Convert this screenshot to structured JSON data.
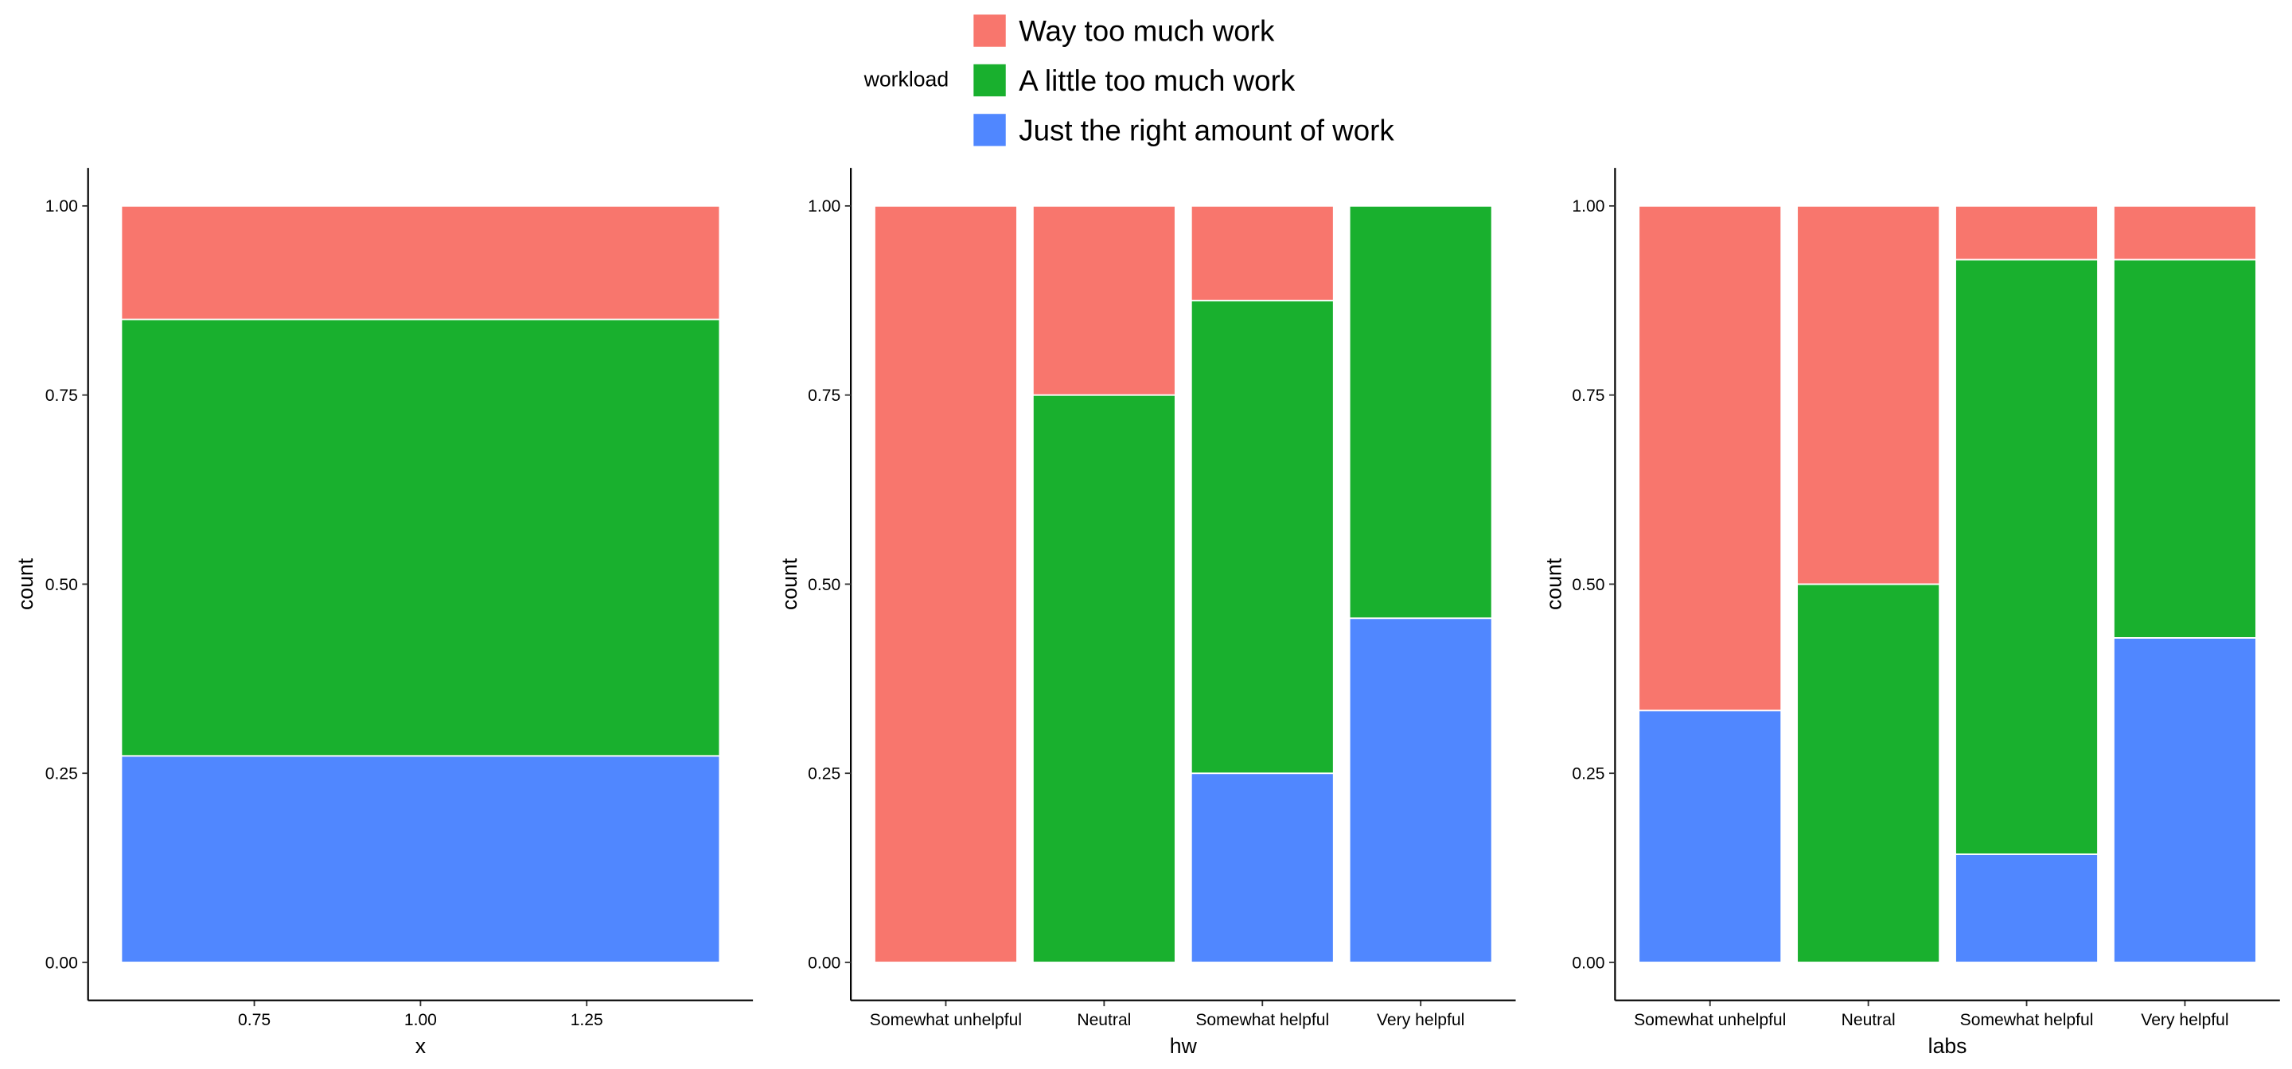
{
  "legend": {
    "title": "workload",
    "placement": "top",
    "entries": [
      {
        "label": "Way too much work",
        "color": "#F8766D"
      },
      {
        "label": "A little too much work",
        "color": "#19B02E"
      },
      {
        "label": "Just the right amount of work",
        "color": "#5087FF"
      }
    ]
  },
  "chart_data": [
    {
      "type": "bar",
      "stacked": "fill",
      "xlabel": "x",
      "ylabel": "count",
      "ylim": [
        0,
        1
      ],
      "yticks": [
        "0.00",
        "0.25",
        "0.50",
        "0.75",
        "1.00"
      ],
      "x_continuous": true,
      "xlim": [
        0.5,
        1.5
      ],
      "xticks": [
        "0.75",
        "1.00",
        "1.25"
      ],
      "categories": [
        "1"
      ],
      "series": [
        {
          "name": "Just the right amount of work",
          "values": [
            0.273
          ]
        },
        {
          "name": "A little too much work",
          "values": [
            0.577
          ]
        },
        {
          "name": "Way too much work",
          "values": [
            0.15
          ]
        }
      ]
    },
    {
      "type": "bar",
      "stacked": "fill",
      "xlabel": "hw",
      "ylabel": "count",
      "ylim": [
        0,
        1
      ],
      "yticks": [
        "0.00",
        "0.25",
        "0.50",
        "0.75",
        "1.00"
      ],
      "categories": [
        "Somewhat unhelpful",
        "Neutral",
        "Somewhat helpful",
        "Very helpful"
      ],
      "series": [
        {
          "name": "Just the right amount of work",
          "values": [
            0,
            0,
            0.25,
            0.455
          ]
        },
        {
          "name": "A little too much work",
          "values": [
            0,
            0.75,
            0.625,
            0.545
          ]
        },
        {
          "name": "Way too much work",
          "values": [
            1,
            0.25,
            0.125,
            0
          ]
        }
      ]
    },
    {
      "type": "bar",
      "stacked": "fill",
      "xlabel": "labs",
      "ylabel": "count",
      "ylim": [
        0,
        1
      ],
      "yticks": [
        "0.00",
        "0.25",
        "0.50",
        "0.75",
        "1.00"
      ],
      "categories": [
        "Somewhat unhelpful",
        "Neutral",
        "Somewhat helpful",
        "Very helpful"
      ],
      "series": [
        {
          "name": "Just the right amount of work",
          "values": [
            0.333,
            0,
            0.143,
            0.429
          ]
        },
        {
          "name": "A little too much work",
          "values": [
            0,
            0.5,
            0.786,
            0.5
          ]
        },
        {
          "name": "Way too much work",
          "values": [
            0.667,
            0.5,
            0.071,
            0.071
          ]
        }
      ]
    }
  ]
}
